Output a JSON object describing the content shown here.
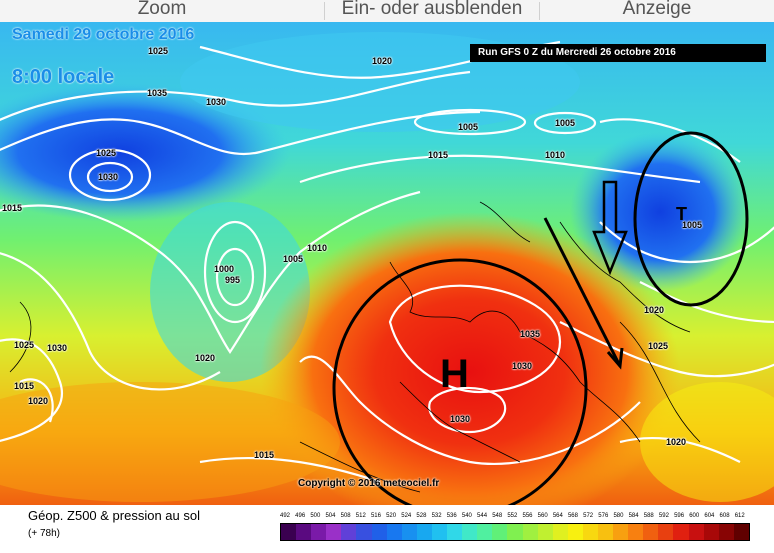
{
  "toolbar": {
    "zoom": "Zoom",
    "toggle": "Ein- oder ausblenden",
    "display": "Anzeige"
  },
  "header": {
    "date": "Samedi 29 octobre 2016",
    "time": "8:00 locale",
    "run": "Run GFS 0 Z du Mercredi 26 octobre 2016"
  },
  "pressure_labels": [
    "1025",
    "1020",
    "1035",
    "1030",
    "1025",
    "1030",
    "1015",
    "1005",
    "1005",
    "1015",
    "1010",
    "1010",
    "1005",
    "1000",
    "995",
    "1025",
    "1030",
    "1020",
    "1015",
    "1020",
    "1035",
    "1030",
    "1030",
    "1015",
    "1020",
    "1025",
    "1020",
    "1005"
  ],
  "annotations": {
    "high": "H",
    "low": "T"
  },
  "copyright": "Copyright © 2016 meteociel.fr",
  "footer": {
    "title": "Géop. Z500 & pression au sol",
    "subtitle": "(+ 78h)"
  },
  "scale": {
    "labels": [
      "492",
      "496",
      "500",
      "504",
      "508",
      "512",
      "516",
      "520",
      "524",
      "528",
      "532",
      "536",
      "540",
      "544",
      "548",
      "552",
      "556",
      "560",
      "564",
      "568",
      "572",
      "576",
      "580",
      "584",
      "588",
      "592",
      "596",
      "600",
      "604",
      "608",
      "612"
    ],
    "colors": [
      "#3a0050",
      "#5a0a80",
      "#7a1aa8",
      "#9a30c8",
      "#6040d8",
      "#3850e0",
      "#2060e8",
      "#1878f0",
      "#1890f0",
      "#18a8f0",
      "#20c0f0",
      "#30d8e8",
      "#40e8c8",
      "#50f0a0",
      "#60f078",
      "#80f050",
      "#a0f040",
      "#c0f030",
      "#e0f020",
      "#f8f010",
      "#f8d810",
      "#f8c010",
      "#f8a010",
      "#f88010",
      "#f06010",
      "#e84010",
      "#e02010",
      "#c81010",
      "#a80808",
      "#880404",
      "#600000"
    ]
  },
  "colors": {
    "accent": "#1a8ee8"
  }
}
